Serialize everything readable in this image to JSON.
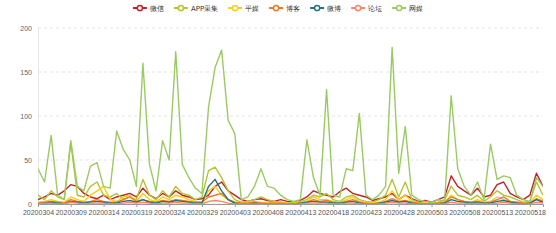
{
  "chart_data": {
    "type": "line",
    "categories": [
      "20200304",
      null,
      null,
      null,
      null,
      "20200309",
      null,
      null,
      null,
      null,
      "20200314",
      null,
      null,
      null,
      null,
      "20200319",
      null,
      null,
      null,
      null,
      "20200324",
      null,
      null,
      null,
      null,
      "20200329",
      null,
      null,
      null,
      null,
      "20200403",
      null,
      null,
      null,
      null,
      "20200408",
      null,
      null,
      null,
      null,
      "20200413",
      null,
      null,
      null,
      null,
      "20200418",
      null,
      null,
      null,
      null,
      "20200423",
      null,
      null,
      null,
      null,
      "20200428",
      null,
      null,
      null,
      null,
      "20200503",
      null,
      null,
      null,
      null,
      "20200508",
      null,
      null,
      null,
      null,
      "20200513",
      null,
      null,
      null,
      null,
      "20200518",
      null,
      null
    ],
    "series": [
      {
        "name": "微信",
        "color": "#C1232B",
        "values": [
          5,
          8,
          12,
          10,
          15,
          22,
          20,
          12,
          8,
          6,
          10,
          5,
          8,
          10,
          12,
          8,
          18,
          10,
          6,
          12,
          8,
          15,
          10,
          8,
          5,
          6,
          10,
          20,
          25,
          15,
          10,
          5,
          3,
          5,
          6,
          4,
          3,
          5,
          3,
          2,
          4,
          8,
          15,
          12,
          10,
          8,
          14,
          18,
          12,
          10,
          8,
          4,
          6,
          8,
          12,
          5,
          10,
          6,
          3,
          4,
          2,
          5,
          8,
          32,
          20,
          15,
          10,
          18,
          8,
          10,
          22,
          25,
          12,
          8,
          5,
          10,
          35,
          20
        ]
      },
      {
        "name": "APP采集",
        "color": "#B5C334",
        "values": [
          10,
          5,
          15,
          8,
          5,
          70,
          10,
          8,
          20,
          25,
          10,
          8,
          12,
          5,
          8,
          5,
          28,
          10,
          5,
          15,
          8,
          20,
          12,
          10,
          5,
          8,
          38,
          42,
          30,
          15,
          5,
          2,
          3,
          5,
          8,
          5,
          3,
          2,
          1,
          2,
          3,
          5,
          10,
          8,
          12,
          5,
          3,
          8,
          10,
          5,
          3,
          2,
          5,
          10,
          28,
          8,
          25,
          5,
          2,
          1,
          1,
          2,
          5,
          20,
          10,
          8,
          5,
          10,
          3,
          8,
          15,
          10,
          8,
          5,
          2,
          3,
          25,
          10
        ]
      },
      {
        "name": "平媒",
        "color": "#FCCE10",
        "values": [
          2,
          3,
          5,
          3,
          2,
          8,
          5,
          3,
          10,
          15,
          20,
          5,
          3,
          8,
          10,
          3,
          12,
          5,
          3,
          8,
          5,
          10,
          8,
          5,
          3,
          2,
          15,
          20,
          10,
          5,
          2,
          1,
          2,
          3,
          2,
          1,
          2,
          1,
          1,
          1,
          2,
          3,
          8,
          5,
          5,
          3,
          2,
          5,
          8,
          3,
          2,
          1,
          2,
          5,
          15,
          5,
          10,
          3,
          1,
          1,
          1,
          1,
          2,
          10,
          5,
          3,
          2,
          5,
          2,
          3,
          8,
          5,
          3,
          2,
          1,
          2,
          10,
          5
        ]
      },
      {
        "name": "博客",
        "color": "#E87C25",
        "values": [
          1,
          2,
          3,
          2,
          1,
          5,
          3,
          2,
          3,
          5,
          3,
          2,
          2,
          5,
          8,
          3,
          5,
          3,
          2,
          4,
          3,
          5,
          4,
          3,
          2,
          2,
          8,
          10,
          12,
          5,
          2,
          1,
          1,
          2,
          1,
          1,
          1,
          1,
          0,
          0,
          1,
          2,
          5,
          3,
          4,
          2,
          1,
          3,
          5,
          2,
          1,
          0,
          1,
          3,
          6,
          3,
          4,
          2,
          1,
          0,
          0,
          1,
          2,
          8,
          5,
          3,
          2,
          3,
          1,
          2,
          5,
          8,
          3,
          2,
          1,
          1,
          6,
          3
        ]
      },
      {
        "name": "微博",
        "color": "#27727B",
        "values": [
          0,
          1,
          2,
          1,
          0,
          3,
          2,
          1,
          2,
          3,
          2,
          1,
          1,
          3,
          4,
          2,
          5,
          2,
          1,
          3,
          2,
          4,
          3,
          2,
          1,
          1,
          20,
          28,
          15,
          5,
          1,
          0,
          0,
          1,
          0,
          0,
          0,
          0,
          0,
          0,
          1,
          2,
          3,
          2,
          2,
          1,
          1,
          2,
          3,
          1,
          0,
          0,
          1,
          2,
          4,
          2,
          3,
          1,
          0,
          0,
          0,
          0,
          1,
          5,
          3,
          2,
          1,
          2,
          1,
          1,
          3,
          4,
          2,
          1,
          0,
          1,
          5,
          2
        ]
      },
      {
        "name": "论坛",
        "color": "#FE8463",
        "values": [
          0,
          1,
          1,
          0,
          0,
          2,
          1,
          0,
          1,
          1,
          1,
          0,
          0,
          1,
          2,
          1,
          2,
          1,
          0,
          1,
          1,
          2,
          1,
          1,
          0,
          0,
          3,
          4,
          3,
          1,
          0,
          0,
          0,
          0,
          0,
          0,
          0,
          0,
          0,
          0,
          0,
          1,
          1,
          1,
          1,
          0,
          0,
          1,
          1,
          0,
          0,
          0,
          0,
          1,
          2,
          1,
          1,
          0,
          0,
          0,
          0,
          0,
          0,
          2,
          1,
          1,
          0,
          1,
          0,
          0,
          1,
          2,
          1,
          0,
          0,
          0,
          2,
          1
        ]
      },
      {
        "name": "网媒",
        "color": "#9BCA63",
        "values": [
          40,
          25,
          78,
          10,
          5,
          72,
          20,
          15,
          43,
          47,
          20,
          18,
          83,
          62,
          50,
          20,
          160,
          45,
          15,
          72,
          50,
          173,
          45,
          30,
          18,
          12,
          110,
          155,
          175,
          95,
          80,
          5,
          8,
          20,
          40,
          20,
          18,
          10,
          5,
          3,
          5,
          73,
          30,
          10,
          130,
          10,
          8,
          40,
          38,
          103,
          10,
          5,
          10,
          20,
          178,
          35,
          88,
          10,
          5,
          3,
          2,
          5,
          3,
          123,
          40,
          20,
          10,
          25,
          5,
          68,
          28,
          32,
          30,
          10,
          5,
          3,
          30,
          20
        ]
      }
    ],
    "ylim": [
      0,
      200
    ],
    "yticks": [
      0,
      50,
      100,
      150,
      200
    ],
    "grid": true,
    "legend": "top"
  }
}
